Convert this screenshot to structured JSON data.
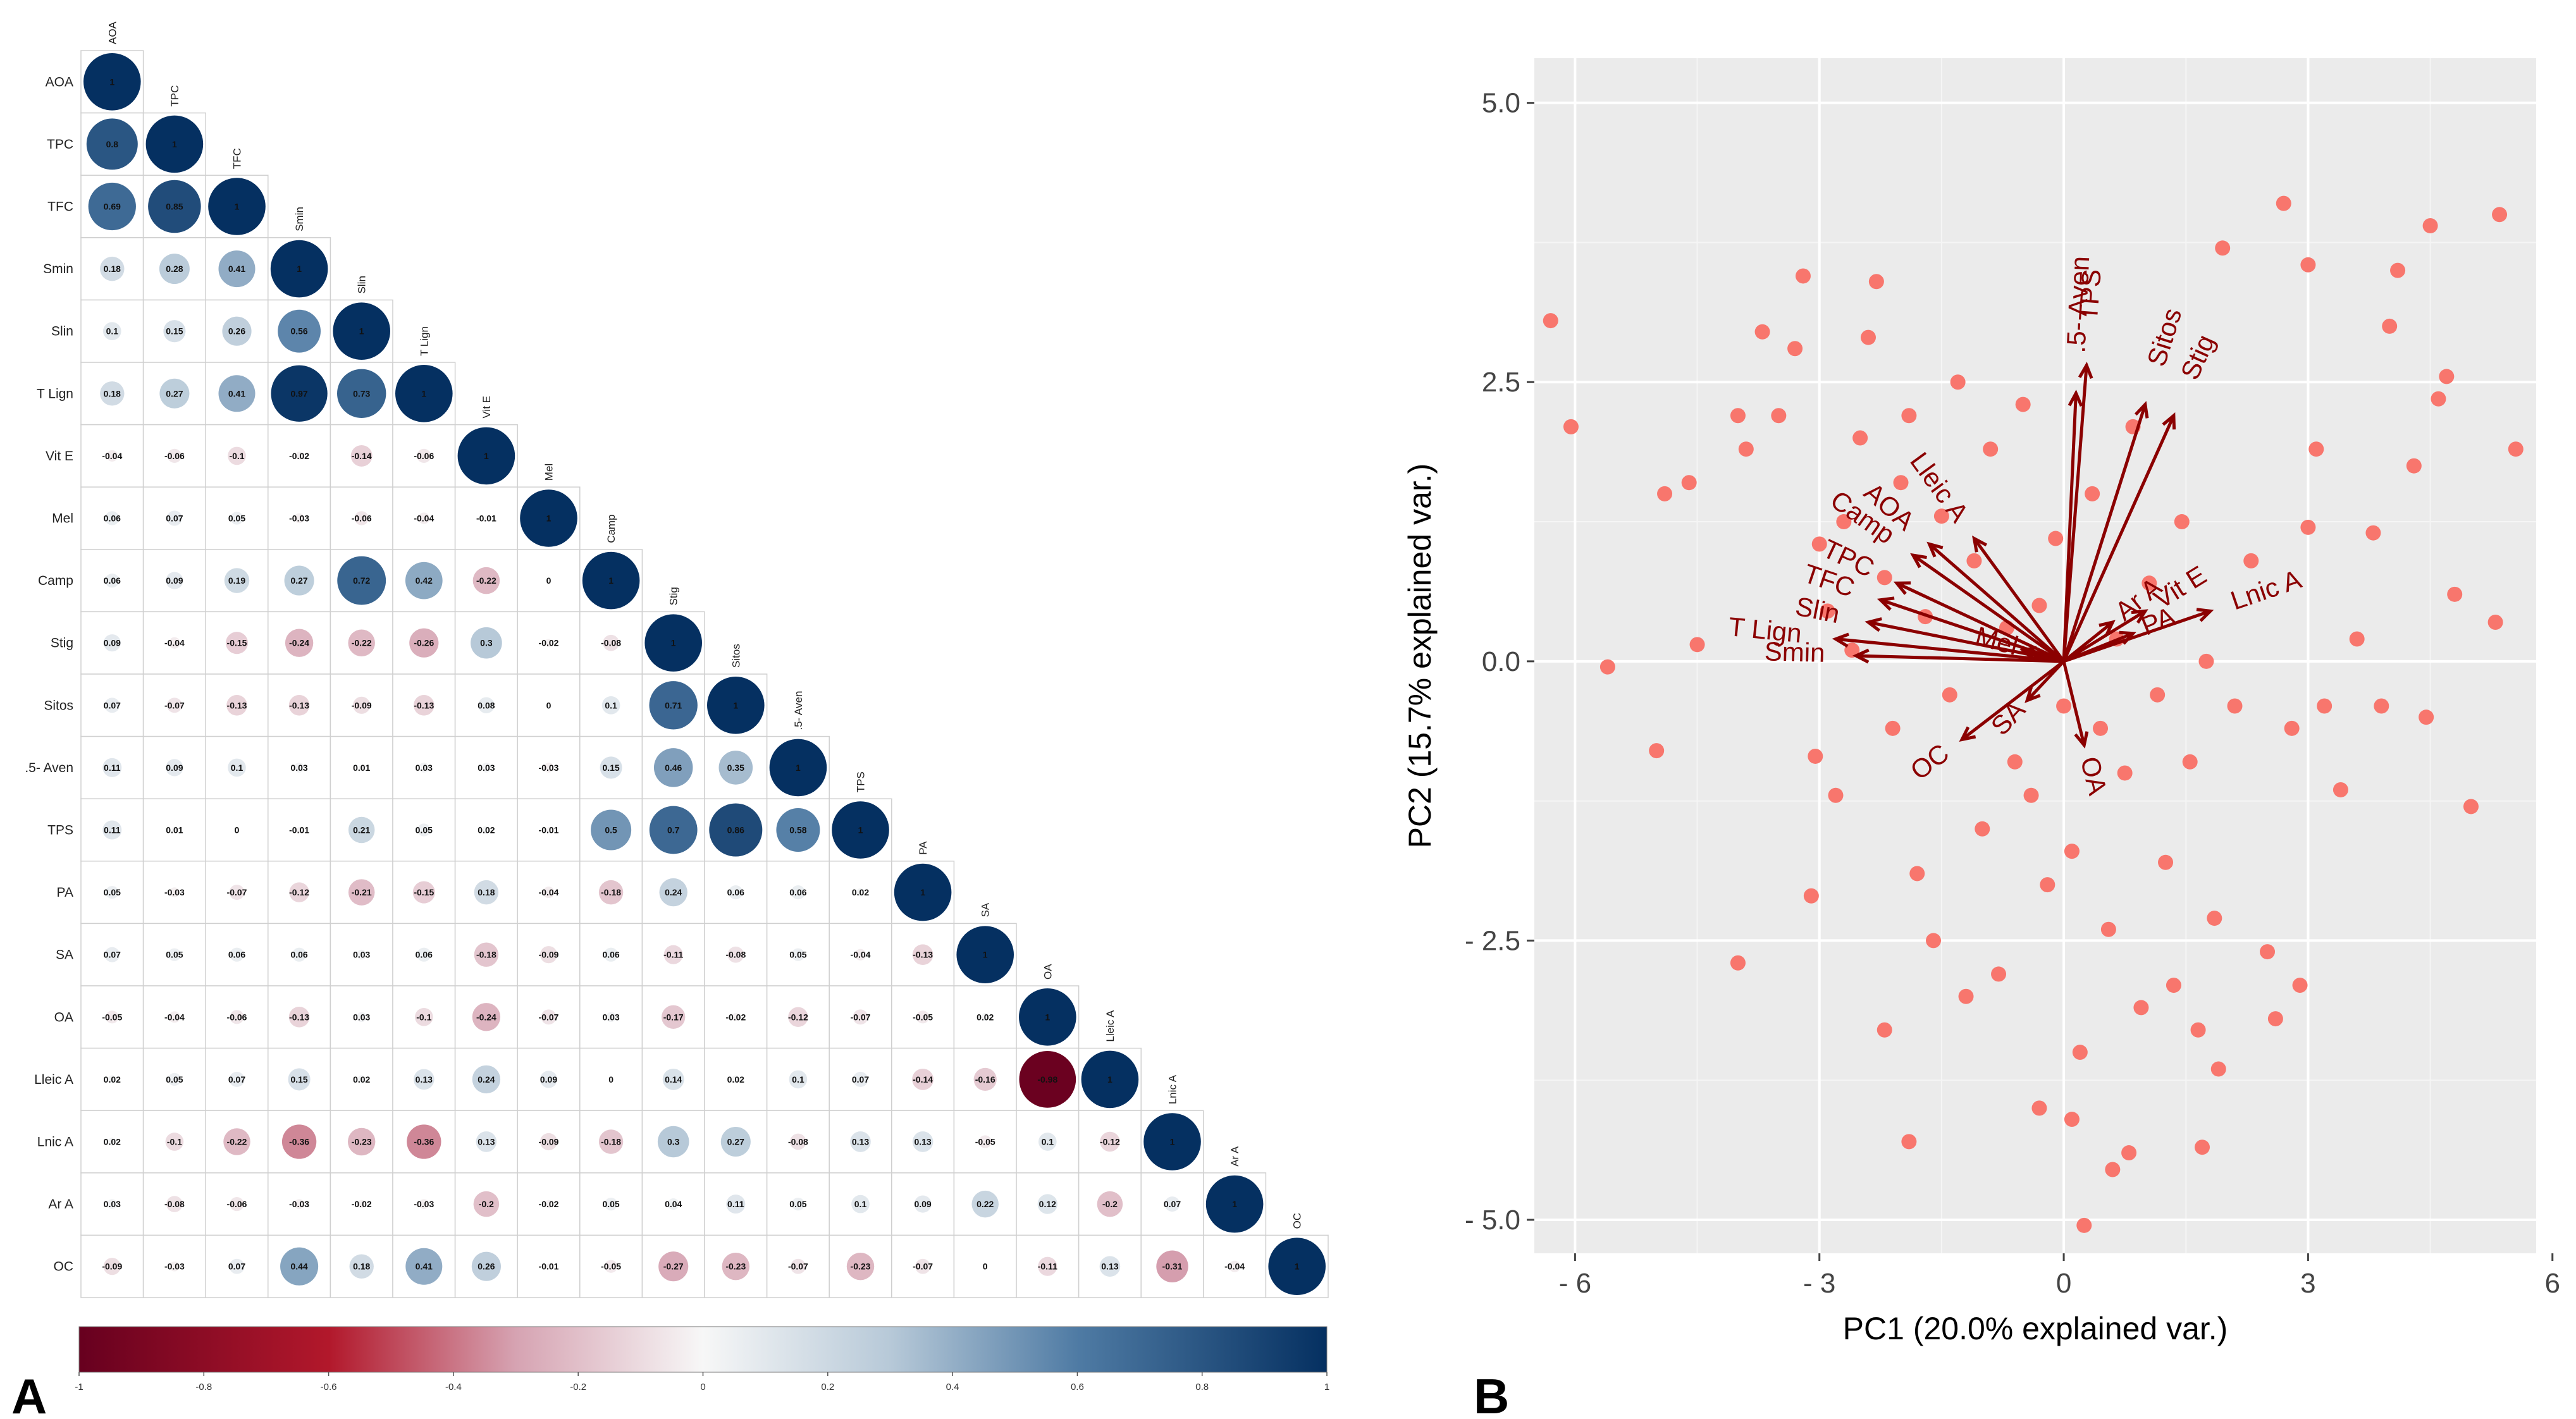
{
  "panels": {
    "left_label": "A",
    "right_label": "B"
  },
  "chart_data": [
    {
      "type": "heatmap",
      "title": "",
      "variables": [
        "AOA",
        "TPC",
        "TFC",
        "Smin",
        "Slin",
        "T Lign",
        "Vit E",
        "Mel",
        "Camp",
        "Stig",
        "Sitos",
        ".5- Aven",
        "TPS",
        "PA",
        "SA",
        "OA",
        "Lleic A",
        "Lnic A",
        "Ar A",
        "OC"
      ],
      "matrix": [
        [
          "1"
        ],
        [
          "0.8",
          "1"
        ],
        [
          "0.69",
          "0.85",
          "1"
        ],
        [
          "0.18",
          "0.28",
          "0.41",
          "1"
        ],
        [
          "0.1",
          "0.15",
          "0.26",
          "0.56",
          "1"
        ],
        [
          "0.18",
          "0.27",
          "0.41",
          "0.97",
          "0.73",
          "1"
        ],
        [
          "-0.04",
          "-0.06",
          "-0.1",
          "-0.02",
          "-0.14",
          "-0.06",
          "1"
        ],
        [
          "0.06",
          "0.07",
          "0.05",
          "-0.03",
          "-0.06",
          "-0.04",
          "-0.01",
          "1"
        ],
        [
          "0.06",
          "0.09",
          "0.19",
          "0.27",
          "0.72",
          "0.42",
          "-0.22",
          "0",
          "1"
        ],
        [
          "0.09",
          "-0.04",
          "-0.15",
          "-0.24",
          "-0.22",
          "-0.26",
          "0.3",
          "-0.02",
          "-0.08",
          "1"
        ],
        [
          "0.07",
          "-0.07",
          "-0.13",
          "-0.13",
          "-0.09",
          "-0.13",
          "0.08",
          "0",
          "0.1",
          "0.71",
          "1"
        ],
        [
          "0.11",
          "0.09",
          "0.1",
          "0.03",
          "0.01",
          "0.03",
          "0.03",
          "-0.03",
          "0.15",
          "0.46",
          "0.35",
          "1"
        ],
        [
          "0.11",
          "0.01",
          "0",
          "-0.01",
          "0.21",
          "0.05",
          "0.02",
          "-0.01",
          "0.5",
          "0.7",
          "0.86",
          "0.58",
          "1"
        ],
        [
          "0.05",
          "-0.03",
          "-0.07",
          "-0.12",
          "-0.21",
          "-0.15",
          "0.18",
          "-0.04",
          "-0.18",
          "0.24",
          "0.06",
          "0.06",
          "0.02",
          "1"
        ],
        [
          "0.07",
          "0.05",
          "0.06",
          "0.06",
          "0.03",
          "0.06",
          "-0.18",
          "-0.09",
          "0.06",
          "-0.11",
          "-0.08",
          "0.05",
          "-0.04",
          "-0.13",
          "1"
        ],
        [
          "-0.05",
          "-0.04",
          "-0.06",
          "-0.13",
          "0.03",
          "-0.1",
          "-0.24",
          "-0.07",
          "0.03",
          "-0.17",
          "-0.02",
          "-0.12",
          "-0.07",
          "-0.05",
          "0.02",
          "1"
        ],
        [
          "0.02",
          "0.05",
          "0.07",
          "0.15",
          "0.02",
          "0.13",
          "0.24",
          "0.09",
          "0",
          "0.14",
          "0.02",
          "0.1",
          "0.07",
          "-0.14",
          "-0.16",
          "-0.98",
          "1"
        ],
        [
          "0.02",
          "-0.1",
          "-0.22",
          "-0.36",
          "-0.23",
          "-0.36",
          "0.13",
          "-0.09",
          "-0.18",
          "0.3",
          "0.27",
          "-0.08",
          "0.13",
          "0.13",
          "-0.05",
          "0.1",
          "-0.12",
          "1"
        ],
        [
          "0.03",
          "-0.08",
          "-0.06",
          "-0.03",
          "-0.02",
          "-0.03",
          "-0.2",
          "-0.02",
          "0.05",
          "0.04",
          "0.11",
          "0.05",
          "0.1",
          "0.09",
          "0.22",
          "0.12",
          "-0.2",
          "0.07",
          "1"
        ],
        [
          "-0.09",
          "-0.03",
          "0.07",
          "0.44",
          "0.18",
          "0.41",
          "0.26",
          "-0.01",
          "-0.05",
          "-0.27",
          "-0.23",
          "-0.07",
          "-0.23",
          "-0.07",
          "0",
          "-0.11",
          "0.13",
          "-0.31",
          "-0.04",
          "1"
        ]
      ],
      "colorbar": {
        "range": [
          -1,
          1
        ],
        "ticks": [
          "-1",
          "-0.8",
          "-0.6",
          "-0.4",
          "-0.2",
          "0",
          "0.2",
          "0.4",
          "0.6",
          "0.8",
          "1"
        ],
        "low_color": "#67001f",
        "mid_color": "#f7f7f7",
        "high_color": "#053061"
      }
    },
    {
      "type": "scatter",
      "subtype": "biplot",
      "xlabel": "PC1 (20.0% explained var.)",
      "ylabel": "PC2 (15.7% explained var.)",
      "xlim": [
        -6.5,
        5.8
      ],
      "ylim": [
        -5.3,
        5.4
      ],
      "xticks": [
        -6,
        -3,
        0,
        3,
        6
      ],
      "xtick_labels": [
        "- 6",
        "- 3",
        "0",
        "3",
        "6"
      ],
      "yticks": [
        5,
        2.5,
        0,
        -2.5,
        -5
      ],
      "ytick_labels": [
        "5.0",
        "2.5",
        "0.0",
        "- 2.5",
        "- 5.0"
      ],
      "point_color": "#f8766d",
      "arrow_color": "#8b0000",
      "background": "#ebebeb",
      "points": [
        [
          -6.3,
          3.05
        ],
        [
          -6.05,
          2.1
        ],
        [
          -5.6,
          -0.05
        ],
        [
          -5.0,
          -0.8
        ],
        [
          -4.9,
          1.5
        ],
        [
          -4.6,
          1.6
        ],
        [
          -4.5,
          0.15
        ],
        [
          -4.0,
          -2.7
        ],
        [
          -4.0,
          2.2
        ],
        [
          -3.9,
          1.9
        ],
        [
          -3.7,
          2.95
        ],
        [
          -3.5,
          2.2
        ],
        [
          -3.3,
          2.8
        ],
        [
          -3.2,
          3.45
        ],
        [
          -3.1,
          -2.1
        ],
        [
          -3.05,
          -0.85
        ],
        [
          -3.0,
          1.05
        ],
        [
          -2.9,
          0.45
        ],
        [
          -2.8,
          -1.2
        ],
        [
          -2.7,
          1.25
        ],
        [
          -2.6,
          0.1
        ],
        [
          -2.5,
          2.0
        ],
        [
          -2.4,
          2.9
        ],
        [
          -2.3,
          3.4
        ],
        [
          -2.2,
          0.75
        ],
        [
          -2.1,
          -0.6
        ],
        [
          -2.0,
          1.6
        ],
        [
          -1.9,
          2.2
        ],
        [
          -1.8,
          -1.9
        ],
        [
          -1.7,
          0.4
        ],
        [
          -1.6,
          -2.5
        ],
        [
          -1.5,
          1.3
        ],
        [
          -1.4,
          -0.3
        ],
        [
          -1.3,
          2.5
        ],
        [
          -1.2,
          -3.0
        ],
        [
          -1.1,
          0.9
        ],
        [
          -1.0,
          -1.5
        ],
        [
          -0.9,
          1.9
        ],
        [
          -0.8,
          -2.8
        ],
        [
          -0.7,
          0.3
        ],
        [
          -0.6,
          -0.9
        ],
        [
          -0.5,
          2.3
        ],
        [
          -0.4,
          -1.2
        ],
        [
          -0.3,
          0.5
        ],
        [
          -0.2,
          -2.0
        ],
        [
          -0.1,
          1.1
        ],
        [
          0.0,
          -0.4
        ],
        [
          0.1,
          -1.7
        ],
        [
          0.2,
          -3.5
        ],
        [
          0.25,
          -5.05
        ],
        [
          0.35,
          1.5
        ],
        [
          0.45,
          -0.6
        ],
        [
          0.55,
          -2.4
        ],
        [
          0.65,
          0.2
        ],
        [
          0.75,
          -1.0
        ],
        [
          0.85,
          2.1
        ],
        [
          0.95,
          -3.1
        ],
        [
          1.05,
          0.7
        ],
        [
          1.15,
          -0.3
        ],
        [
          1.25,
          -1.8
        ],
        [
          1.35,
          -2.9
        ],
        [
          1.45,
          1.25
        ],
        [
          1.55,
          -0.9
        ],
        [
          1.65,
          -3.3
        ],
        [
          1.75,
          0.0
        ],
        [
          1.85,
          -2.3
        ],
        [
          1.9,
          -3.65
        ],
        [
          1.95,
          3.7
        ],
        [
          2.1,
          -0.4
        ],
        [
          2.3,
          0.9
        ],
        [
          2.5,
          -2.6
        ],
        [
          2.6,
          -3.2
        ],
        [
          2.7,
          4.1
        ],
        [
          2.8,
          -0.6
        ],
        [
          2.9,
          -2.9
        ],
        [
          3.0,
          1.2
        ],
        [
          3.0,
          3.55
        ],
        [
          3.1,
          1.9
        ],
        [
          3.2,
          -0.4
        ],
        [
          3.4,
          -1.15
        ],
        [
          3.6,
          0.2
        ],
        [
          3.8,
          1.15
        ],
        [
          3.9,
          -0.4
        ],
        [
          4.0,
          3.0
        ],
        [
          4.1,
          3.5
        ],
        [
          4.3,
          1.75
        ],
        [
          4.45,
          -0.5
        ],
        [
          4.5,
          3.9
        ],
        [
          4.6,
          2.35
        ],
        [
          4.7,
          2.55
        ],
        [
          4.8,
          0.6
        ],
        [
          5.0,
          -1.3
        ],
        [
          5.3,
          0.35
        ],
        [
          5.35,
          4.0
        ],
        [
          5.55,
          1.9
        ],
        [
          -1.9,
          -4.3
        ],
        [
          0.1,
          -4.1
        ],
        [
          -0.3,
          -4.0
        ],
        [
          -2.2,
          -3.3
        ],
        [
          1.7,
          -4.35
        ],
        [
          0.8,
          -4.4
        ],
        [
          0.6,
          -4.55
        ]
      ],
      "loadings": [
        {
          "label": "TPS",
          "x": 0.28,
          "y": 2.65
        },
        {
          "label": ".5- Aven",
          "x": 0.15,
          "y": 2.4
        },
        {
          "label": "Sitos",
          "x": 1.0,
          "y": 2.3
        },
        {
          "label": "Stig",
          "x": 1.35,
          "y": 2.2
        },
        {
          "label": "Lnic A",
          "x": 1.8,
          "y": 0.45
        },
        {
          "label": "Vit E",
          "x": 1.0,
          "y": 0.45
        },
        {
          "label": "PA",
          "x": 0.85,
          "y": 0.25
        },
        {
          "label": "Ar A",
          "x": 0.6,
          "y": 0.35
        },
        {
          "label": "OA",
          "x": 0.25,
          "y": -0.75
        },
        {
          "label": "SA",
          "x": -0.45,
          "y": -0.35
        },
        {
          "label": "OC",
          "x": -1.25,
          "y": -0.7
        },
        {
          "label": "Mel",
          "x": -0.5,
          "y": 0.1
        },
        {
          "label": "Lleic A",
          "x": -1.1,
          "y": 1.1
        },
        {
          "label": "AOA",
          "x": -1.65,
          "y": 1.05
        },
        {
          "label": "Camp",
          "x": -1.85,
          "y": 0.95
        },
        {
          "label": "TPC",
          "x": -2.05,
          "y": 0.7
        },
        {
          "label": "TFC",
          "x": -2.25,
          "y": 0.55
        },
        {
          "label": "Slin",
          "x": -2.4,
          "y": 0.35
        },
        {
          "label": "T Lign",
          "x": -2.8,
          "y": 0.2
        },
        {
          "label": "Smin",
          "x": -2.55,
          "y": 0.05
        }
      ]
    }
  ]
}
